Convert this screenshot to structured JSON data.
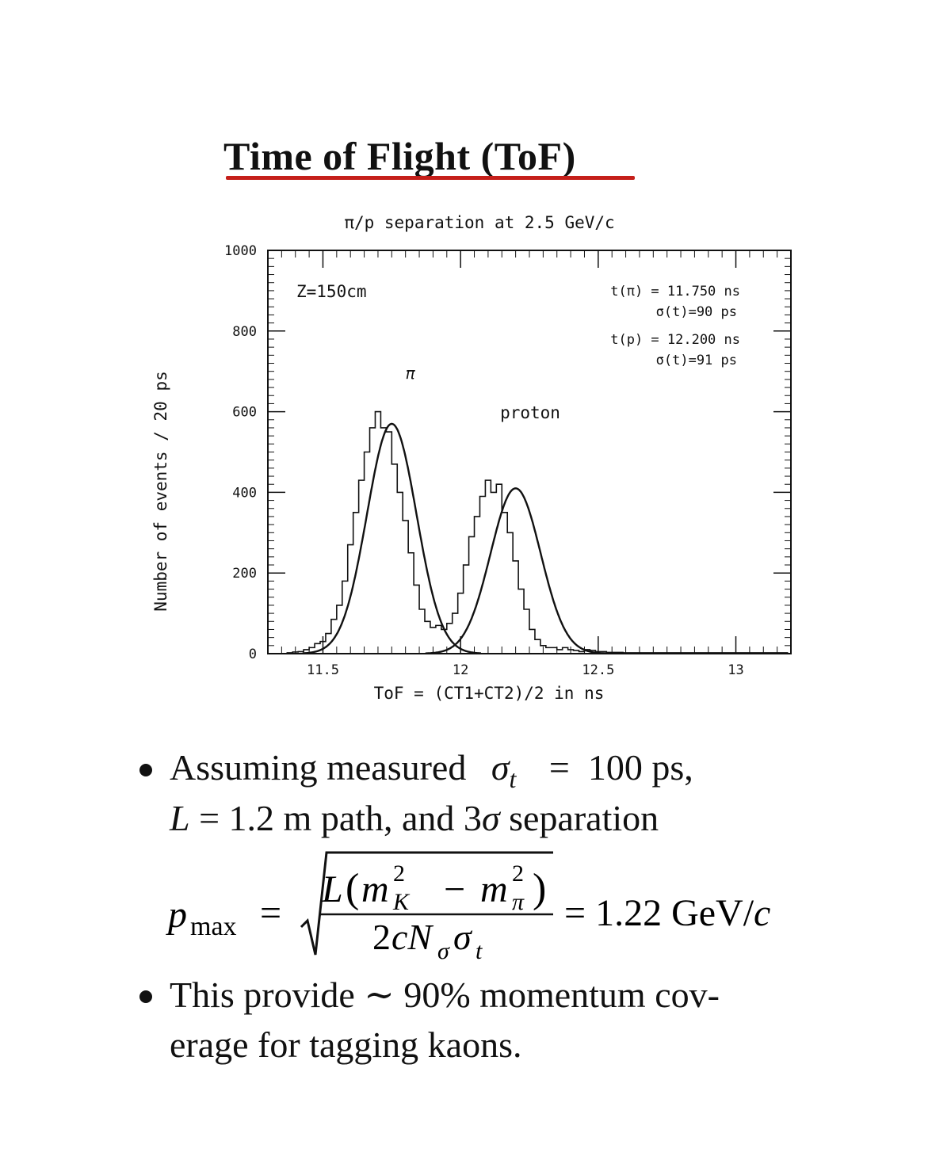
{
  "page": {
    "title": "Time of Flight (ToF)"
  },
  "chart_data": {
    "type": "line",
    "title": "π/p separation at 2.5 GeV/c",
    "xlabel": "ToF = (CT1+CT2)/2 in ns",
    "ylabel": "Number of events / 20 ps",
    "xlim": [
      11.3,
      13.2
    ],
    "ylim": [
      0,
      1000
    ],
    "x_ticks": [
      11.5,
      12,
      12.5,
      13
    ],
    "x_tick_labels": [
      "11.5",
      "12",
      "12.5",
      "13"
    ],
    "y_ticks": [
      0,
      200,
      400,
      600,
      800,
      1000
    ],
    "y_tick_labels": [
      "0",
      "200",
      "400",
      "600",
      "800",
      "1000"
    ],
    "annotations": {
      "z": "Z=150cm",
      "pi_label": "π",
      "proton_label": "proton",
      "t_pi": "t(π) = 11.750 ns",
      "sigma_pi": "σ(t)=90 ps",
      "t_p": "t(p) = 12.200 ns",
      "sigma_p": "σ(t)=91 ps"
    },
    "series": [
      {
        "type": "histogram",
        "bin_width": 0.02,
        "x": [
          11.36,
          11.38,
          11.4,
          11.42,
          11.44,
          11.46,
          11.48,
          11.5,
          11.52,
          11.54,
          11.56,
          11.58,
          11.6,
          11.62,
          11.64,
          11.66,
          11.68,
          11.7,
          11.72,
          11.74,
          11.76,
          11.78,
          11.8,
          11.82,
          11.84,
          11.86,
          11.88,
          11.9,
          11.92,
          11.94,
          11.96,
          11.98,
          12.0,
          12.02,
          12.04,
          12.06,
          12.08,
          12.1,
          12.12,
          12.14,
          12.16,
          12.18,
          12.2,
          12.22,
          12.24,
          12.26,
          12.28,
          12.3,
          12.32,
          12.34,
          12.36,
          12.38,
          12.4,
          12.42,
          12.44,
          12.46,
          12.48,
          12.5,
          12.52,
          12.54,
          12.56,
          12.58,
          12.6,
          12.62,
          12.64,
          12.66,
          12.68,
          12.7,
          12.72,
          12.74,
          12.76,
          12.78,
          12.8,
          12.82,
          12.84,
          12.86,
          12.88,
          12.9,
          12.92,
          12.94,
          12.96,
          12.98,
          13.0,
          13.02,
          13.04,
          13.06,
          13.08,
          13.1,
          13.12,
          13.14,
          13.16,
          13.18
        ],
        "values": [
          0,
          2,
          4,
          5,
          10,
          15,
          25,
          30,
          50,
          85,
          120,
          180,
          270,
          350,
          430,
          500,
          560,
          600,
          560,
          550,
          470,
          400,
          330,
          250,
          170,
          110,
          80,
          65,
          70,
          60,
          75,
          100,
          150,
          220,
          290,
          340,
          390,
          430,
          400,
          420,
          350,
          300,
          230,
          160,
          110,
          60,
          35,
          20,
          15,
          15,
          10,
          15,
          10,
          8,
          5,
          10,
          8,
          5,
          5,
          3,
          3,
          3,
          2,
          2,
          2,
          2,
          2,
          2,
          2,
          2,
          2,
          2,
          2,
          2,
          2,
          2,
          2,
          2,
          2,
          2,
          2,
          2,
          2,
          2,
          2,
          2,
          2,
          2,
          2,
          2,
          2,
          2
        ]
      },
      {
        "type": "gaussian_fit",
        "label": "π",
        "mean": 11.75,
        "sigma": 0.09,
        "amplitude": 570
      },
      {
        "type": "gaussian_fit",
        "label": "proton",
        "mean": 12.2,
        "sigma": 0.091,
        "amplitude": 410
      }
    ]
  },
  "bullets": {
    "b1_line1_a": "Assuming measured",
    "b1_sigma": "σ",
    "b1_sigma_sub": "t",
    "b1_line1_b": "=  100 ps,",
    "b1_line2_L": "L",
    "b1_line2_rest": " = 1.2 m path, and 3",
    "b1_line2_sigma": "σ",
    "b1_line2_end": " separation",
    "eq_lhs": "p",
    "eq_lhs_sub": "max",
    "eq_equals": "=",
    "eq_num": "L (m²_K − m²_π)",
    "eq_den": "2cN_σσ_t",
    "eq_rhs": "= 1.22 GeV/c",
    "b2_line1": "This provide ∼ 90% momentum cov-",
    "b2_line2": "erage for tagging kaons."
  }
}
